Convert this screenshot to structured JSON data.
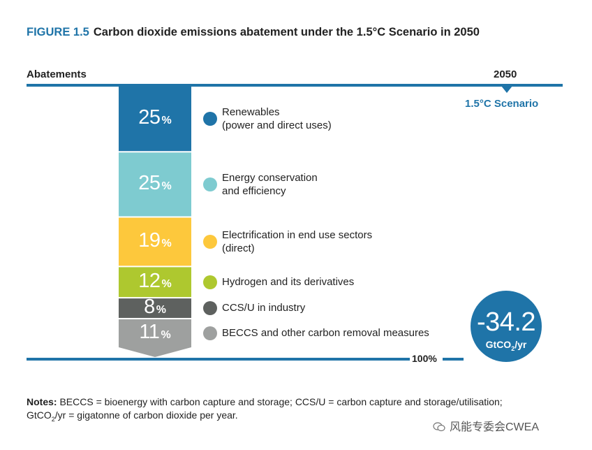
{
  "figure": {
    "label": "FIGURE 1.5",
    "title": "Carbon dioxide emissions abatement under the 1.5°C Scenario in 2050"
  },
  "header": {
    "left_label": "Abatements",
    "year": "2050",
    "scenario": "1.5°C Scenario"
  },
  "total": {
    "percent_label": "100%",
    "value": "-34.2",
    "unit_text": "GtCO",
    "unit_sub": "2",
    "unit_tail": "/yr"
  },
  "notes": {
    "bold": "Notes:",
    "line1": "BECCS = bioenergy with carbon capture and storage; CCS/U = carbon capture and storage/utilisation;",
    "line2_a": "GtCO",
    "line2_sub": "2",
    "line2_b": "/yr = gigatonne of carbon dioxide per year."
  },
  "watermark": {
    "text": "风能专委会CWEA",
    "icon": "wechat-icon"
  },
  "chart_data": {
    "type": "bar",
    "stacked": true,
    "orientation": "vertical",
    "unit": "%",
    "categories": [
      "Renewables (power and direct uses)",
      "Energy conservation and efficiency",
      "Electrification in end use sectors (direct)",
      "Hydrogen and its derivatives",
      "CCS/U in industry",
      "BECCS and other carbon removal measures"
    ],
    "values": [
      25,
      25,
      19,
      12,
      8,
      11
    ],
    "labels": [
      "25",
      "25",
      "19",
      "12",
      "8",
      "11"
    ],
    "pct_suffix": "%",
    "colors": [
      "#1f74a8",
      "#7ecbd0",
      "#fdc83c",
      "#aec82f",
      "#5e615f",
      "#9ea09f"
    ],
    "legend": [
      {
        "line1": "Renewables",
        "line2": "(power and direct uses)"
      },
      {
        "line1": "Energy conservation",
        "line2": "and efficiency"
      },
      {
        "line1": "Electrification in end use sectors",
        "line2": "(direct)"
      },
      {
        "line1": "Hydrogen and its derivatives",
        "line2": ""
      },
      {
        "line1": "CCS/U in industry",
        "line2": ""
      },
      {
        "line1": "BECCS and other carbon removal measures",
        "line2": ""
      }
    ],
    "total_percent": 100,
    "total_value": -34.2,
    "total_unit": "GtCO2/yr"
  }
}
